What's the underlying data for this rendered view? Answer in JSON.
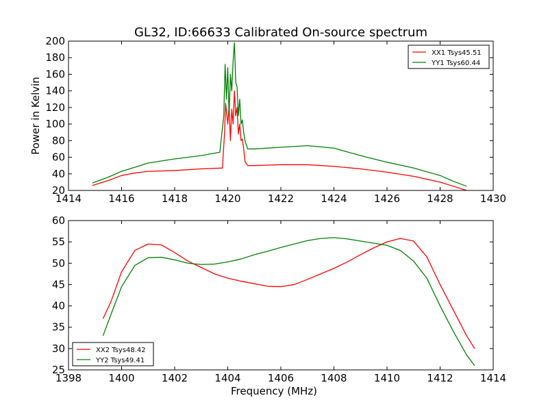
{
  "figure": {
    "title": "GL32, ID:66633 Calibrated On-source spectrum"
  },
  "chart_data": [
    {
      "type": "line",
      "title": "GL32, ID:66633 Calibrated On-source spectrum",
      "xlabel": "",
      "ylabel": "Power in Kelvin",
      "xlim": [
        1414,
        1430
      ],
      "ylim": [
        20,
        200
      ],
      "xticks": [
        1414,
        1416,
        1418,
        1420,
        1422,
        1424,
        1426,
        1428,
        1430
      ],
      "yticks": [
        20,
        40,
        60,
        80,
        100,
        120,
        140,
        160,
        180,
        200
      ],
      "legend_position": "top-right",
      "grid": false,
      "series": [
        {
          "name": "XX1 Tsys45.51",
          "color": "#ff0000",
          "x": [
            1414.9,
            1415.5,
            1416.0,
            1416.5,
            1417.0,
            1418.0,
            1419.0,
            1419.8,
            1419.88,
            1419.92,
            1420.0,
            1420.05,
            1420.1,
            1420.15,
            1420.2,
            1420.25,
            1420.3,
            1420.35,
            1420.4,
            1420.45,
            1420.5,
            1420.55,
            1420.6,
            1420.65,
            1420.75,
            1421.0,
            1422.0,
            1423.0,
            1424.0,
            1425.0,
            1426.0,
            1427.0,
            1428.0,
            1428.5,
            1429.0
          ],
          "y": [
            26,
            32,
            38,
            41,
            43,
            44,
            46,
            47,
            90,
            125,
            100,
            122,
            80,
            118,
            100,
            140,
            110,
            120,
            88,
            100,
            80,
            82,
            70,
            55,
            50,
            50,
            51,
            51,
            49,
            46,
            42,
            37,
            30,
            25,
            20
          ]
        },
        {
          "name": "YY1 Tsys60.44",
          "color": "#008000",
          "x": [
            1414.9,
            1415.5,
            1416.0,
            1416.5,
            1417.0,
            1418.0,
            1419.0,
            1419.7,
            1419.85,
            1419.9,
            1419.95,
            1420.0,
            1420.05,
            1420.1,
            1420.15,
            1420.2,
            1420.25,
            1420.3,
            1420.35,
            1420.4,
            1420.45,
            1420.5,
            1420.55,
            1420.6,
            1420.65,
            1420.75,
            1421.0,
            1422.0,
            1423.0,
            1424.0,
            1425.0,
            1426.0,
            1427.0,
            1428.0,
            1428.5,
            1429.0
          ],
          "y": [
            29,
            36,
            43,
            48,
            53,
            58,
            62,
            66,
            110,
            172,
            130,
            168,
            110,
            160,
            140,
            175,
            198,
            150,
            145,
            110,
            130,
            100,
            105,
            90,
            80,
            70,
            70,
            72,
            74,
            71,
            62,
            54,
            47,
            38,
            31,
            25
          ]
        }
      ]
    },
    {
      "type": "line",
      "title": "",
      "xlabel": "Frequency (MHz)",
      "ylabel": "",
      "xlim": [
        1398,
        1414
      ],
      "ylim": [
        25,
        60
      ],
      "xticks": [
        1398,
        1400,
        1402,
        1404,
        1406,
        1408,
        1410,
        1412,
        1414
      ],
      "yticks": [
        25,
        30,
        35,
        40,
        45,
        50,
        55,
        60
      ],
      "legend_position": "bottom-left",
      "grid": false,
      "series": [
        {
          "name": "XX2 Tsys48.42",
          "color": "#ff0000",
          "x": [
            1399.3,
            1399.6,
            1400.0,
            1400.5,
            1401.0,
            1401.5,
            1402.0,
            1402.5,
            1403.0,
            1403.5,
            1404.0,
            1404.5,
            1405.0,
            1405.5,
            1406.0,
            1406.5,
            1407.0,
            1407.5,
            1408.0,
            1408.5,
            1409.0,
            1409.5,
            1410.0,
            1410.5,
            1411.0,
            1411.5,
            1412.0,
            1412.5,
            1413.0,
            1413.3
          ],
          "y": [
            37,
            41,
            48,
            53,
            54.5,
            54.3,
            52.5,
            50.5,
            49,
            47.5,
            46.5,
            45.8,
            45.2,
            44.6,
            44.5,
            45,
            46.2,
            47.5,
            48.8,
            50.3,
            52,
            53.6,
            55,
            55.8,
            55.2,
            51.5,
            45,
            39,
            33,
            30
          ]
        },
        {
          "name": "YY2 Tsys49.41",
          "color": "#008000",
          "x": [
            1399.3,
            1399.6,
            1400.0,
            1400.5,
            1401.0,
            1401.5,
            1402.0,
            1402.5,
            1403.0,
            1403.5,
            1404.0,
            1404.5,
            1405.0,
            1405.5,
            1406.0,
            1406.5,
            1407.0,
            1407.5,
            1408.0,
            1408.5,
            1409.0,
            1409.5,
            1410.0,
            1410.5,
            1411.0,
            1411.5,
            1412.0,
            1412.5,
            1413.0,
            1413.3
          ],
          "y": [
            33,
            38,
            44.5,
            49.5,
            51.3,
            51.4,
            50.8,
            50,
            49.7,
            49.8,
            50.3,
            51,
            52,
            52.8,
            53.7,
            54.5,
            55.3,
            55.8,
            56,
            55.7,
            55.2,
            54.7,
            54.2,
            53,
            50.5,
            46.5,
            40,
            34,
            28.5,
            26
          ]
        }
      ]
    }
  ]
}
